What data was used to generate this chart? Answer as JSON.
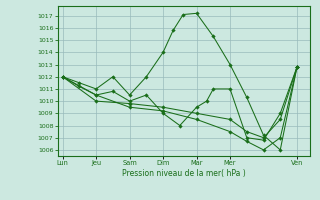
{
  "xlabel": "Pression niveau de la mer( hPa )",
  "background_color": "#cce8e0",
  "grid_color": "#99bbbb",
  "line_color": "#1a6e1a",
  "x_ticks_labels": [
    "Lun",
    "Jeu",
    "Sam",
    "Dim",
    "Mar",
    "Mer",
    "Ven"
  ],
  "x_ticks_pos": [
    0,
    1,
    2,
    3,
    4,
    5,
    7
  ],
  "ylim": [
    1005.5,
    1017.8
  ],
  "yticks": [
    1006,
    1007,
    1008,
    1009,
    1010,
    1011,
    1012,
    1013,
    1014,
    1015,
    1016,
    1017
  ],
  "xlim": [
    -0.15,
    7.4
  ],
  "line1_x": [
    0,
    0.5,
    1,
    1.5,
    2,
    2.5,
    3,
    3.3,
    3.6,
    4,
    4.5,
    5,
    5.5,
    6,
    6.5,
    7
  ],
  "line1_y": [
    1012.0,
    1011.5,
    1011.0,
    1012.0,
    1010.5,
    1012.0,
    1014.0,
    1015.8,
    1017.1,
    1017.2,
    1015.3,
    1013.0,
    1010.3,
    1007.2,
    1006.0,
    1012.8
  ],
  "line2_x": [
    0,
    0.5,
    1,
    1.5,
    2,
    2.5,
    3,
    3.5,
    4,
    4.3,
    4.5,
    5,
    5.5,
    6,
    6.5,
    7
  ],
  "line2_y": [
    1012.0,
    1011.2,
    1010.5,
    1010.8,
    1010.0,
    1010.5,
    1009.0,
    1008.0,
    1009.5,
    1010.0,
    1011.0,
    1011.0,
    1007.0,
    1006.8,
    1009.0,
    1012.8
  ],
  "line3_x": [
    0,
    1,
    2,
    3,
    4,
    5,
    5.5,
    6,
    6.5,
    7
  ],
  "line3_y": [
    1012.0,
    1010.5,
    1009.5,
    1009.2,
    1008.5,
    1007.5,
    1006.7,
    1006.0,
    1007.0,
    1012.8
  ],
  "line4_x": [
    0,
    1,
    2,
    3,
    4,
    5,
    5.5,
    6,
    6.5,
    7
  ],
  "line4_y": [
    1012.0,
    1010.0,
    1009.8,
    1009.5,
    1009.0,
    1008.5,
    1007.5,
    1007.0,
    1008.5,
    1012.8
  ]
}
